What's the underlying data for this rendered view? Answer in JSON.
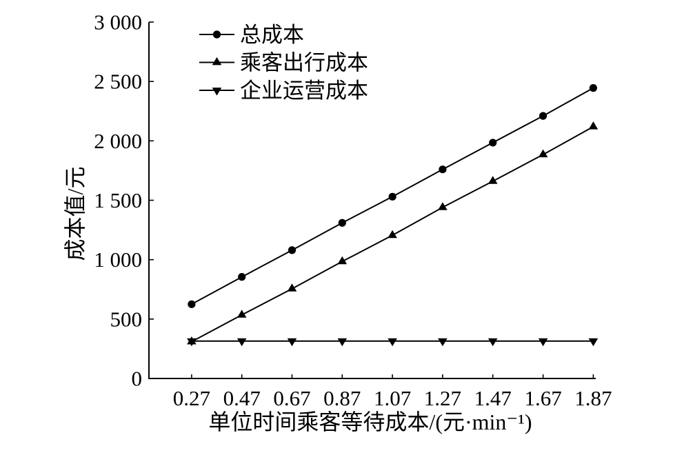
{
  "chart_data": {
    "type": "line",
    "x": [
      0.27,
      0.47,
      0.67,
      0.87,
      1.07,
      1.27,
      1.47,
      1.67,
      1.87
    ],
    "xlim": [
      0.1,
      1.88
    ],
    "ylim": [
      0,
      3000
    ],
    "yticks": [
      0,
      500,
      1000,
      1500,
      2000,
      2500,
      3000
    ],
    "ytick_labels": [
      "0",
      "500",
      "1 000",
      "1 500",
      "2 000",
      "2 500",
      "3 000"
    ],
    "xlabel": "单位时间乘客等待成本/(元·min⁻¹)",
    "ylabel": "成本值/元",
    "legend": "top-left",
    "grid": false,
    "series": [
      {
        "name": "总成本",
        "marker": "circle",
        "color": "#000000",
        "values": [
          625,
          855,
          1080,
          1310,
          1530,
          1760,
          1985,
          2210,
          2445
        ]
      },
      {
        "name": "乘客出行成本",
        "marker": "triangle-up",
        "color": "#000000",
        "values": [
          310,
          535,
          755,
          985,
          1205,
          1440,
          1660,
          1885,
          2120
        ]
      },
      {
        "name": "企业运营成本",
        "marker": "triangle-down",
        "color": "#000000",
        "values": [
          315,
          315,
          315,
          315,
          315,
          315,
          315,
          315,
          315
        ]
      }
    ]
  }
}
